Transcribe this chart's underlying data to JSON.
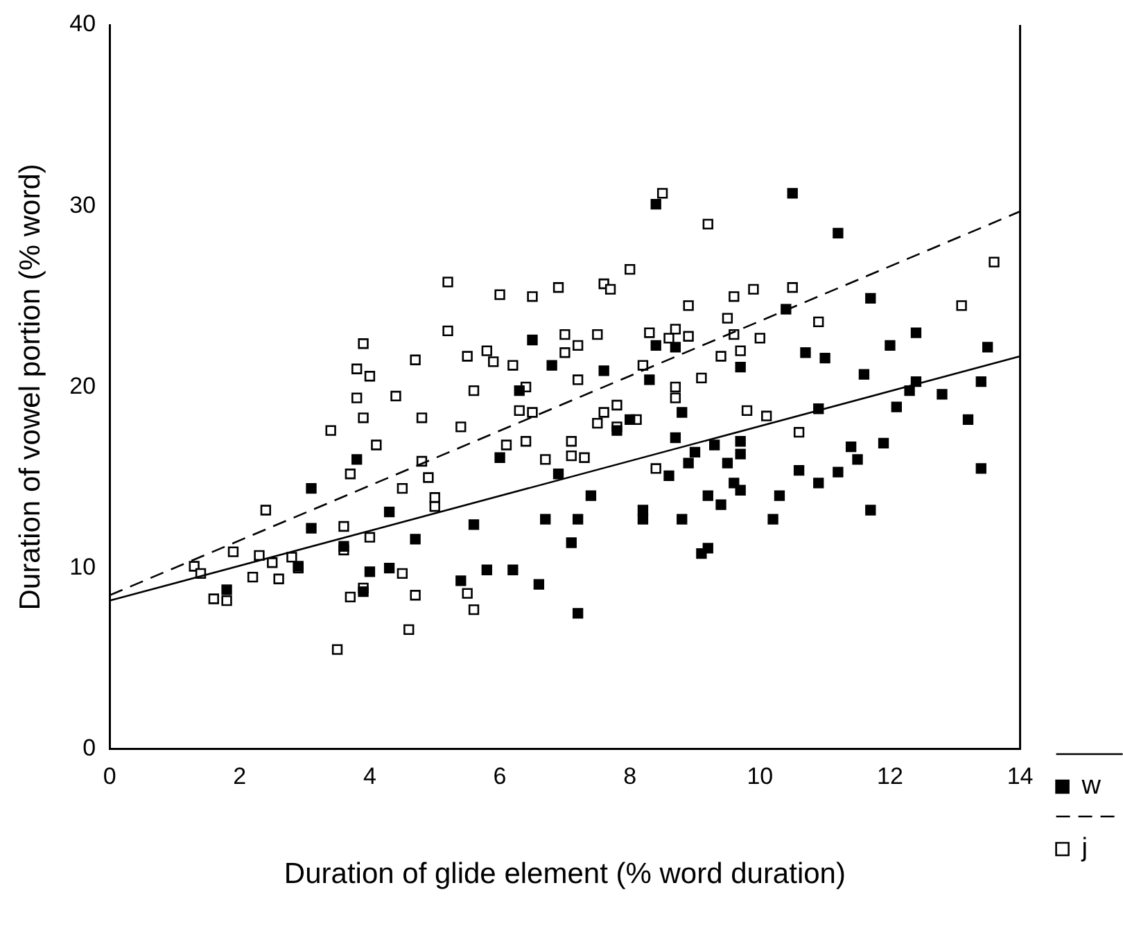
{
  "chart_data": {
    "type": "scatter",
    "xlabel": "Duration of glide element (% word duration)",
    "ylabel": "Duration of vowel portion (% word)",
    "xlim": [
      0,
      14
    ],
    "xticks": [
      0,
      2,
      4,
      6,
      8,
      10,
      12,
      14
    ],
    "ylim": [
      0,
      40
    ],
    "yticks": [
      0,
      10,
      20,
      30,
      40
    ],
    "grid": false,
    "legend": "bottom right",
    "series": [
      {
        "type": "line",
        "x": [
          0,
          14
        ],
        "values": [
          8.2,
          21.7
        ],
        "color": "#000000",
        "line_style": "solid",
        "marker": "none"
      },
      {
        "name": "w",
        "color": "#000000",
        "marker": "square",
        "x": [
          1.8,
          2.9,
          3.1,
          3.1,
          3.6,
          3.8,
          3.9,
          4.0,
          4.3,
          4.3,
          4.7,
          5.4,
          5.6,
          5.8,
          6.0,
          6.2,
          6.3,
          6.5,
          6.6,
          6.7,
          6.8,
          6.9,
          7.1,
          7.2,
          7.2,
          7.4,
          7.6,
          7.8,
          8.0,
          8.2,
          8.2,
          8.3,
          8.4,
          8.4,
          8.6,
          8.7,
          8.7,
          8.8,
          8.8,
          8.9,
          9.0,
          9.1,
          9.2,
          9.2,
          9.3,
          9.4,
          9.5,
          9.6,
          9.7,
          9.7,
          9.7,
          9.7,
          10.2,
          10.3,
          10.4,
          10.5,
          10.6,
          10.7,
          10.9,
          10.9,
          11.0,
          11.2,
          11.2,
          11.4,
          11.5,
          11.6,
          11.7,
          11.7,
          11.9,
          12.0,
          12.1,
          12.3,
          12.4,
          12.4,
          12.8,
          13.2,
          13.4,
          13.4,
          13.5
        ],
        "values": [
          8.8,
          10.1,
          14.4,
          12.2,
          11.2,
          16.0,
          8.7,
          9.8,
          13.1,
          10.0,
          11.6,
          9.3,
          12.4,
          9.9,
          16.1,
          9.9,
          19.8,
          22.6,
          9.1,
          12.7,
          21.2,
          15.2,
          11.4,
          7.5,
          12.7,
          14.0,
          20.9,
          17.6,
          18.2,
          12.7,
          13.2,
          20.4,
          22.3,
          30.1,
          15.1,
          22.2,
          17.2,
          18.6,
          12.7,
          15.8,
          16.4,
          10.8,
          11.1,
          14.0,
          16.8,
          13.5,
          15.8,
          14.7,
          16.3,
          14.3,
          17.0,
          21.1,
          12.7,
          14.0,
          24.3,
          30.7,
          15.4,
          21.9,
          18.8,
          14.7,
          21.6,
          15.3,
          28.5,
          16.7,
          16.0,
          20.7,
          24.9,
          13.2,
          16.9,
          22.3,
          18.9,
          19.8,
          20.3,
          23.0,
          19.6,
          18.2,
          15.5,
          20.3,
          22.2
        ]
      },
      {
        "type": "line",
        "x": [
          0,
          14
        ],
        "values": [
          8.5,
          29.7
        ],
        "color": "#000000",
        "line_style": "dashed",
        "marker": "none"
      },
      {
        "name": "j",
        "color": "#ffffff",
        "marker": "square",
        "x": [
          1.3,
          1.4,
          1.6,
          1.8,
          1.9,
          2.2,
          2.3,
          2.4,
          2.5,
          2.6,
          2.8,
          2.9,
          3.4,
          3.5,
          3.6,
          3.6,
          3.7,
          3.7,
          3.8,
          3.8,
          3.9,
          3.9,
          3.9,
          4.0,
          4.1,
          4.0,
          4.4,
          4.5,
          4.5,
          4.6,
          4.7,
          4.7,
          4.8,
          4.8,
          4.9,
          5.0,
          5.0,
          5.2,
          5.2,
          5.4,
          5.5,
          5.5,
          5.6,
          5.6,
          5.8,
          5.9,
          6.0,
          6.1,
          6.2,
          6.3,
          6.4,
          6.4,
          6.5,
          6.5,
          6.7,
          6.9,
          7.0,
          7.0,
          7.1,
          7.1,
          7.2,
          7.2,
          7.3,
          7.5,
          7.5,
          7.6,
          7.6,
          7.7,
          7.8,
          7.8,
          8.0,
          8.1,
          8.2,
          8.3,
          8.4,
          8.5,
          8.6,
          8.7,
          8.7,
          8.7,
          8.9,
          8.9,
          9.1,
          9.2,
          9.4,
          9.5,
          9.6,
          9.6,
          9.7,
          9.9,
          10.0,
          9.8,
          10.1,
          10.5,
          10.6,
          10.9,
          13.1,
          13.6
        ],
        "values": [
          10.1,
          9.7,
          8.3,
          8.2,
          10.9,
          9.5,
          10.7,
          13.2,
          10.3,
          9.4,
          10.6,
          10.0,
          17.6,
          5.5,
          11.0,
          12.3,
          15.2,
          8.4,
          21.0,
          19.4,
          22.4,
          18.3,
          8.9,
          11.7,
          16.8,
          20.6,
          19.5,
          9.7,
          14.4,
          6.6,
          21.5,
          8.5,
          15.9,
          18.3,
          15.0,
          13.9,
          13.4,
          25.8,
          23.1,
          17.8,
          21.7,
          8.6,
          19.8,
          7.7,
          22.0,
          21.4,
          25.1,
          16.8,
          21.2,
          18.7,
          17.0,
          20.0,
          25.0,
          18.6,
          16.0,
          25.5,
          22.9,
          21.9,
          17.0,
          16.2,
          22.3,
          20.4,
          16.1,
          18.0,
          22.9,
          18.6,
          25.7,
          25.4,
          17.8,
          19.0,
          26.5,
          18.2,
          21.2,
          23.0,
          15.5,
          30.7,
          22.7,
          20.0,
          23.2,
          19.4,
          24.5,
          22.8,
          20.5,
          29.0,
          21.7,
          23.8,
          25.0,
          22.9,
          22.0,
          25.4,
          22.7,
          18.7,
          18.4,
          25.5,
          17.5,
          23.6,
          24.5,
          26.9
        ]
      }
    ]
  }
}
